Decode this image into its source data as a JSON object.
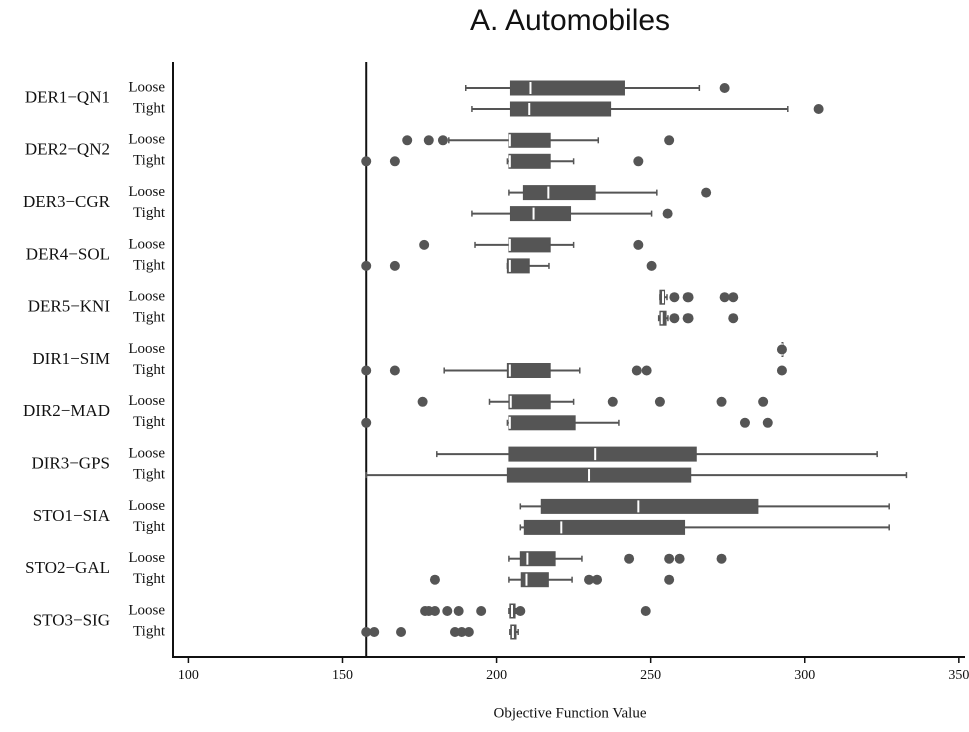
{
  "chart_data": {
    "type": "box",
    "title": "A. Automobiles",
    "xlabel": "Objective Function Value",
    "xlim": [
      95,
      352
    ],
    "xticks": [
      100,
      150,
      200,
      250,
      300,
      350
    ],
    "reference_line": 157.7,
    "color": "#555555",
    "groups": [
      {
        "name": "DER1−QN1",
        "series": [
          {
            "name": "Loose",
            "whislo": 190,
            "q1": 204.5,
            "med": 211,
            "q3": 241.5,
            "whishi": 265.8,
            "fliers": [
              274
            ]
          },
          {
            "name": "Tight",
            "whislo": 192,
            "q1": 204.5,
            "med": 210.6,
            "q3": 237,
            "whishi": 294.5,
            "fliers": [
              304.5
            ]
          }
        ]
      },
      {
        "name": "DER2−QN2",
        "series": [
          {
            "name": "Loose",
            "whislo": 184.5,
            "q1": 204,
            "med": 204.3,
            "q3": 217.4,
            "whishi": 233,
            "fliers": [
              171,
              178,
              182.6,
              256
            ]
          },
          {
            "name": "Tight",
            "whislo": 203.5,
            "q1": 204,
            "med": 204.3,
            "q3": 217.4,
            "whishi": 225,
            "fliers": [
              157.7,
              167,
              246
            ]
          }
        ]
      },
      {
        "name": "DER3−CGR",
        "series": [
          {
            "name": "Loose",
            "whislo": 204,
            "q1": 208.7,
            "med": 216.8,
            "q3": 232,
            "whishi": 252,
            "fliers": [
              268
            ]
          },
          {
            "name": "Tight",
            "whislo": 192,
            "q1": 204.5,
            "med": 212,
            "q3": 224,
            "whishi": 250.3,
            "fliers": [
              255.5
            ]
          }
        ]
      },
      {
        "name": "DER4−SOL",
        "series": [
          {
            "name": "Loose",
            "whislo": 193,
            "q1": 204,
            "med": 204.3,
            "q3": 217.4,
            "whishi": 225,
            "fliers": [
              176.5,
              246
            ]
          },
          {
            "name": "Tight",
            "whislo": 203.5,
            "q1": 203.5,
            "med": 204.3,
            "q3": 210.6,
            "whishi": 217,
            "fliers": [
              157.7,
              167,
              250.3
            ]
          }
        ]
      },
      {
        "name": "DER5−KNI",
        "series": [
          {
            "name": "Loose",
            "whislo": 253,
            "q1": 253,
            "med": 254,
            "q3": 254.5,
            "whishi": 255.3,
            "fliers": [
              257.7,
              262,
              262.3,
              274,
              276.8
            ]
          },
          {
            "name": "Tight",
            "whislo": 252.6,
            "q1": 253,
            "med": 253.6,
            "q3": 255,
            "whishi": 255.6,
            "fliers": [
              257.7,
              262,
              262.3,
              276.8
            ]
          }
        ]
      },
      {
        "name": "DIR1−SIM",
        "series": [
          {
            "name": "Loose",
            "whislo": 292.6,
            "q1": 292.6,
            "med": 292.6,
            "q3": 292.6,
            "whishi": 292.6,
            "fliers": [
              292.6
            ]
          },
          {
            "name": "Tight",
            "whislo": 183,
            "q1": 203.5,
            "med": 204.3,
            "q3": 217.4,
            "whishi": 227,
            "fliers": [
              157.7,
              167,
              245.5,
              248.7,
              292.6
            ]
          }
        ]
      },
      {
        "name": "DIR2−MAD",
        "series": [
          {
            "name": "Loose",
            "whislo": 197.7,
            "q1": 204,
            "med": 204.6,
            "q3": 217.4,
            "whishi": 225,
            "fliers": [
              176,
              237.7,
              253,
              273,
              286.5
            ]
          },
          {
            "name": "Tight",
            "whislo": 203.5,
            "q1": 204,
            "med": 204.3,
            "q3": 225.5,
            "whishi": 239.7,
            "fliers": [
              157.7,
              280.6,
              288
            ]
          }
        ]
      },
      {
        "name": "DIR3−GPS",
        "series": [
          {
            "name": "Loose",
            "whislo": 180.6,
            "q1": 204,
            "med": 232,
            "q3": 264.8,
            "whishi": 323.5,
            "fliers": []
          },
          {
            "name": "Tight",
            "whislo": 157.7,
            "q1": 203.5,
            "med": 230,
            "q3": 263,
            "whishi": 333,
            "fliers": []
          }
        ]
      },
      {
        "name": "STO1−SIA",
        "series": [
          {
            "name": "Loose",
            "whislo": 207.7,
            "q1": 214.5,
            "med": 246,
            "q3": 284.8,
            "whishi": 327.4,
            "fliers": []
          },
          {
            "name": "Tight",
            "whislo": 207.7,
            "q1": 209,
            "med": 221,
            "q3": 261,
            "whishi": 327.4,
            "fliers": []
          }
        ]
      },
      {
        "name": "STO2−GAL",
        "series": [
          {
            "name": "Loose",
            "whislo": 204,
            "q1": 207.7,
            "med": 210,
            "q3": 219,
            "whishi": 227.7,
            "fliers": [
              243,
              256,
              259.4,
              273
            ]
          },
          {
            "name": "Tight",
            "whislo": 204,
            "q1": 208,
            "med": 209.7,
            "q3": 216.8,
            "whishi": 224.5,
            "fliers": [
              180,
              230,
              232.6,
              256
            ]
          }
        ]
      },
      {
        "name": "STO3−SIG",
        "series": [
          {
            "name": "Loose",
            "whislo": 204,
            "q1": 204.3,
            "med": 205,
            "q3": 206,
            "whishi": 206.3,
            "fliers": [
              176.8,
              178,
              180,
              184,
              187.7,
              195,
              207.7,
              248.4
            ]
          },
          {
            "name": "Tight",
            "whislo": 204.3,
            "q1": 204.6,
            "med": 205.3,
            "q3": 206.3,
            "whishi": 207,
            "fliers": [
              157.7,
              160.3,
              169,
              186.5,
              188.7,
              191
            ]
          }
        ]
      }
    ]
  }
}
